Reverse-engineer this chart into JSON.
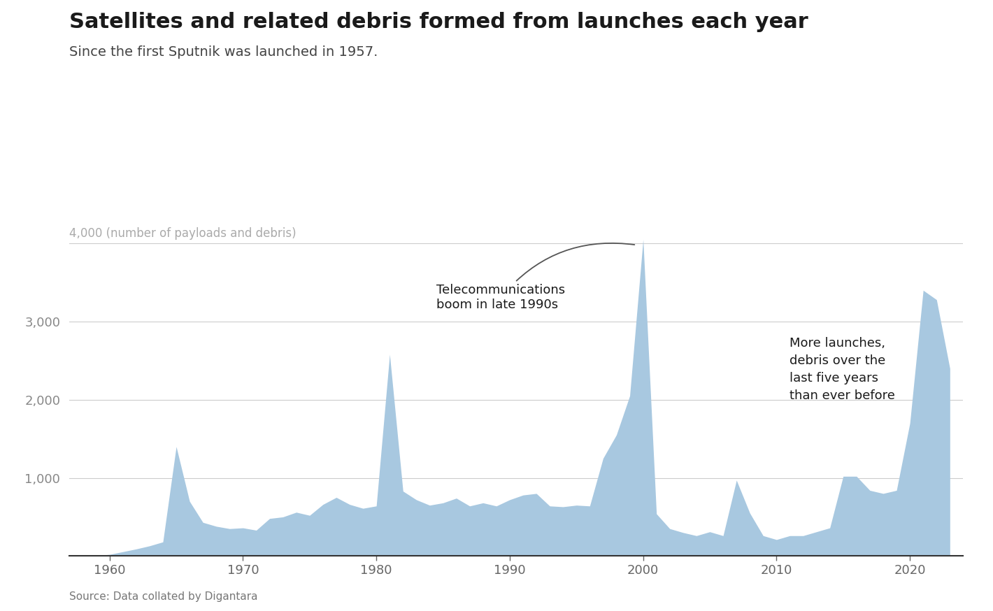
{
  "title": "Satellites and related debris formed from launches each year",
  "subtitle": "Since the first Sputnik was launched in 1957.",
  "ylabel": "4,000 (number of payloads and debris)",
  "source": "Source: Data collated by Digantara",
  "area_color": "#a8c8e0",
  "background_color": "#ffffff",
  "grid_color": "#cccccc",
  "text_dark": "#1a1a1a",
  "text_mid": "#444444",
  "text_axis": "#888888",
  "annotation1_text": "Telecommunications\nboom in late 1990s",
  "annotation2_text": "More launches,\ndebris over the\nlast five years\nthan ever before",
  "years": [
    1957,
    1958,
    1959,
    1960,
    1961,
    1962,
    1963,
    1964,
    1965,
    1966,
    1967,
    1968,
    1969,
    1970,
    1971,
    1972,
    1973,
    1974,
    1975,
    1976,
    1977,
    1978,
    1979,
    1980,
    1981,
    1982,
    1983,
    1984,
    1985,
    1986,
    1987,
    1988,
    1989,
    1990,
    1991,
    1992,
    1993,
    1994,
    1995,
    1996,
    1997,
    1998,
    1999,
    2000,
    2001,
    2002,
    2003,
    2004,
    2005,
    2006,
    2007,
    2008,
    2009,
    2010,
    2011,
    2012,
    2013,
    2014,
    2015,
    2016,
    2017,
    2018,
    2019,
    2020,
    2021,
    2022,
    2023
  ],
  "values": [
    2,
    3,
    5,
    20,
    55,
    90,
    130,
    180,
    1400,
    700,
    430,
    380,
    350,
    360,
    330,
    480,
    500,
    560,
    520,
    660,
    750,
    660,
    610,
    640,
    2580,
    830,
    720,
    650,
    680,
    740,
    640,
    680,
    640,
    720,
    780,
    800,
    640,
    630,
    650,
    640,
    1250,
    1550,
    2050,
    4050,
    540,
    350,
    300,
    260,
    310,
    260,
    970,
    550,
    260,
    210,
    260,
    260,
    310,
    360,
    1020,
    1020,
    840,
    800,
    840,
    1700,
    3400,
    3280,
    2400
  ],
  "ylim": [
    0,
    4300
  ],
  "xlim": [
    1957,
    2024
  ],
  "yticks": [
    1000,
    2000,
    3000,
    4000
  ],
  "ytick_labels": [
    "1,000",
    "2,000",
    "3,000",
    ""
  ],
  "xticks": [
    1960,
    1970,
    1980,
    1990,
    2000,
    2010,
    2020
  ],
  "title_fontsize": 22,
  "subtitle_fontsize": 14,
  "tick_fontsize": 13,
  "annotation_fontsize": 13,
  "ylabel_fontsize": 12,
  "source_fontsize": 11
}
